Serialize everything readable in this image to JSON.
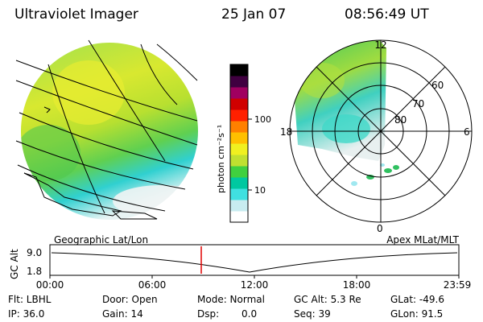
{
  "header": {
    "instrument": "Ultraviolet Imager",
    "date": "25 Jan 07",
    "time": "08:56:49 UT"
  },
  "colorbar": {
    "unit_label": "photon cm⁻²s⁻¹",
    "tick_100": "100",
    "tick_10": "10",
    "colors": [
      "#ffffff",
      "#c8ecf0",
      "#40e0e0",
      "#00c8a0",
      "#40d040",
      "#c0e030",
      "#f0f020",
      "#ffc000",
      "#ff8000",
      "#ff2000",
      "#d00000",
      "#a00060",
      "#400040",
      "#000000"
    ]
  },
  "polar": {
    "mlt_12": "12",
    "mlt_18": "18",
    "mlt_6": "6",
    "mlt_0": "0",
    "lat_60": "60",
    "lat_70": "70",
    "lat_80": "80"
  },
  "timeline": {
    "left_label": "Geographic Lat/Lon",
    "right_label": "Apex MLat/MLT",
    "axis_label": "GC Alt",
    "y_max": "9.0",
    "y_min": "1.8",
    "x_ticks": [
      "00:00",
      "06:00",
      "12:00",
      "18:00",
      "23:59"
    ],
    "current_marker_color": "#e00000"
  },
  "status": {
    "flt": "Flt: LBHL",
    "ip": "IP: 36.0",
    "door": "Door: Open",
    "gain": "Gain: 14",
    "mode": "Mode: Normal",
    "dsp_label": "Dsp:",
    "dsp_value": "0.0",
    "gcalt": "GC Alt: 5.3 Re",
    "seq": "Seq: 39",
    "glat": "GLat: -49.6",
    "glon": "GLon: 91.5"
  }
}
